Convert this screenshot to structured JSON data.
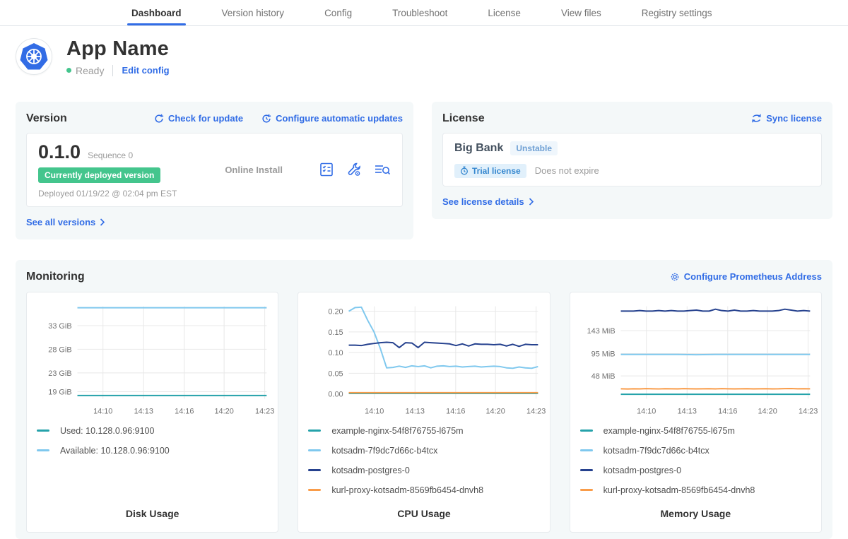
{
  "nav": {
    "tabs": [
      {
        "label": "Dashboard",
        "active": true
      },
      {
        "label": "Version history",
        "active": false
      },
      {
        "label": "Config",
        "active": false
      },
      {
        "label": "Troubleshoot",
        "active": false
      },
      {
        "label": "License",
        "active": false
      },
      {
        "label": "View files",
        "active": false
      },
      {
        "label": "Registry settings",
        "active": false
      }
    ]
  },
  "header": {
    "app_name": "App Name",
    "status": "Ready",
    "edit_config": "Edit config"
  },
  "version": {
    "title": "Version",
    "check_update": "Check for update",
    "configure_auto_updates": "Configure automatic updates",
    "number": "0.1.0",
    "sequence": "Sequence 0",
    "deployed_badge": "Currently deployed version",
    "deployed_at": "Deployed 01/19/22 @ 02:04 pm EST",
    "install_type": "Online Install",
    "see_all": "See all versions"
  },
  "license": {
    "title": "License",
    "sync": "Sync license",
    "name": "Big Bank",
    "channel": "Unstable",
    "trial_badge": "Trial license",
    "expiry": "Does not expire",
    "details": "See license details"
  },
  "monitoring": {
    "title": "Monitoring",
    "configure_link": "Configure Prometheus Address"
  },
  "colors": {
    "link_blue": "#326de6",
    "badge_green": "#44c58d",
    "teal": "#25a2aa",
    "light_blue": "#7fc8ee",
    "navy": "#25418e",
    "orange": "#f99c49"
  },
  "chart_data": [
    {
      "type": "line",
      "title": "Disk Usage",
      "ylim": [
        17.5,
        37.1
      ],
      "yticks": [
        {
          "value": 33,
          "label": "33 GiB"
        },
        {
          "value": 28,
          "label": "28 GiB"
        },
        {
          "value": 23,
          "label": "23 GiB"
        },
        {
          "value": 19,
          "label": "19 GiB"
        }
      ],
      "xticks": [
        {
          "label": "14:10",
          "pos": 0.135
        },
        {
          "label": "14:13",
          "pos": 0.35
        },
        {
          "label": "14:16",
          "pos": 0.565
        },
        {
          "label": "14:20",
          "pos": 0.775
        },
        {
          "label": "14:23",
          "pos": 0.99
        }
      ],
      "series": [
        {
          "name": "Used: 10.128.0.96:9100",
          "color": "#25a2aa",
          "values": [
            18.2,
            18.2
          ]
        },
        {
          "name": "Available: 10.128.0.96:9100",
          "color": "#7fc8ee",
          "values": [
            36.8,
            36.8
          ]
        }
      ]
    },
    {
      "type": "line",
      "title": "CPU Usage",
      "ylim": [
        -0.012,
        0.212
      ],
      "yticks": [
        {
          "value": 0.2,
          "label": "0.20"
        },
        {
          "value": 0.15,
          "label": "0.15"
        },
        {
          "value": 0.1,
          "label": "0.10"
        },
        {
          "value": 0.05,
          "label": "0.05"
        },
        {
          "value": 0.0,
          "label": "0.00"
        }
      ],
      "xticks": [
        {
          "label": "14:10",
          "pos": 0.135
        },
        {
          "label": "14:13",
          "pos": 0.35
        },
        {
          "label": "14:16",
          "pos": 0.565
        },
        {
          "label": "14:20",
          "pos": 0.775
        },
        {
          "label": "14:23",
          "pos": 0.99
        }
      ],
      "series": [
        {
          "name": "example-nginx-54f8f76755-l675m",
          "color": "#25a2aa",
          "values": [
            0.001,
            0.001
          ]
        },
        {
          "name": "kotsadm-7f9dc7d66c-b4tcx",
          "color": "#7fc8ee",
          "values": [
            0.2,
            0.209,
            0.21,
            0.178,
            0.15,
            0.11,
            0.063,
            0.064,
            0.067,
            0.064,
            0.068,
            0.066,
            0.068,
            0.063,
            0.067,
            0.068,
            0.066,
            0.067,
            0.065,
            0.066,
            0.067,
            0.065,
            0.066,
            0.067,
            0.066,
            0.063,
            0.062,
            0.065,
            0.063,
            0.062,
            0.066
          ]
        },
        {
          "name": "kotsadm-postgres-0",
          "color": "#25418e",
          "values": [
            0.118,
            0.118,
            0.117,
            0.12,
            0.122,
            0.124,
            0.125,
            0.124,
            0.112,
            0.124,
            0.123,
            0.112,
            0.125,
            0.124,
            0.123,
            0.122,
            0.121,
            0.117,
            0.121,
            0.116,
            0.121,
            0.12,
            0.12,
            0.119,
            0.12,
            0.116,
            0.12,
            0.115,
            0.12,
            0.119,
            0.119
          ]
        },
        {
          "name": "kurl-proxy-kotsadm-8569fb6454-dnvh8",
          "color": "#f99c49",
          "values": [
            0.003,
            0.003
          ]
        }
      ]
    },
    {
      "type": "line",
      "title": "Memory Usage",
      "ylim": [
        0,
        194
      ],
      "yticks": [
        {
          "value": 143,
          "label": "143 MiB"
        },
        {
          "value": 95,
          "label": "95 MiB"
        },
        {
          "value": 48,
          "label": "48 MiB"
        }
      ],
      "xticks": [
        {
          "label": "14:10",
          "pos": 0.135
        },
        {
          "label": "14:13",
          "pos": 0.35
        },
        {
          "label": "14:16",
          "pos": 0.565
        },
        {
          "label": "14:20",
          "pos": 0.775
        },
        {
          "label": "14:23",
          "pos": 0.99
        }
      ],
      "series": [
        {
          "name": "example-nginx-54f8f76755-l675m",
          "color": "#25a2aa",
          "values": [
            9.5,
            9.5
          ]
        },
        {
          "name": "kotsadm-7f9dc7d66c-b4tcx",
          "color": "#7fc8ee",
          "values": [
            93,
            93,
            93,
            93,
            92.5,
            93,
            93,
            93,
            93,
            93,
            93
          ]
        },
        {
          "name": "kotsadm-postgres-0",
          "color": "#25418e",
          "values": [
            184,
            184,
            184,
            185,
            184,
            184,
            185,
            184,
            185,
            184,
            184,
            185,
            186,
            184,
            184,
            188,
            185,
            184,
            186,
            184,
            184,
            185,
            184,
            184,
            184,
            185,
            188,
            186,
            184,
            185,
            184
          ]
        },
        {
          "name": "kurl-proxy-kotsadm-8569fb6454-dnvh8",
          "color": "#f99c49",
          "values": [
            21,
            20.6,
            21,
            20.8,
            21.4,
            21,
            20.7,
            21.1,
            21,
            20.8,
            21.3,
            21,
            20.8,
            21,
            21.2,
            20.9,
            21.3,
            21,
            20.8,
            21,
            21.1,
            20.9,
            21,
            21.2,
            20.8,
            21,
            21.4,
            21.6,
            21,
            21.2,
            21
          ]
        }
      ]
    }
  ]
}
